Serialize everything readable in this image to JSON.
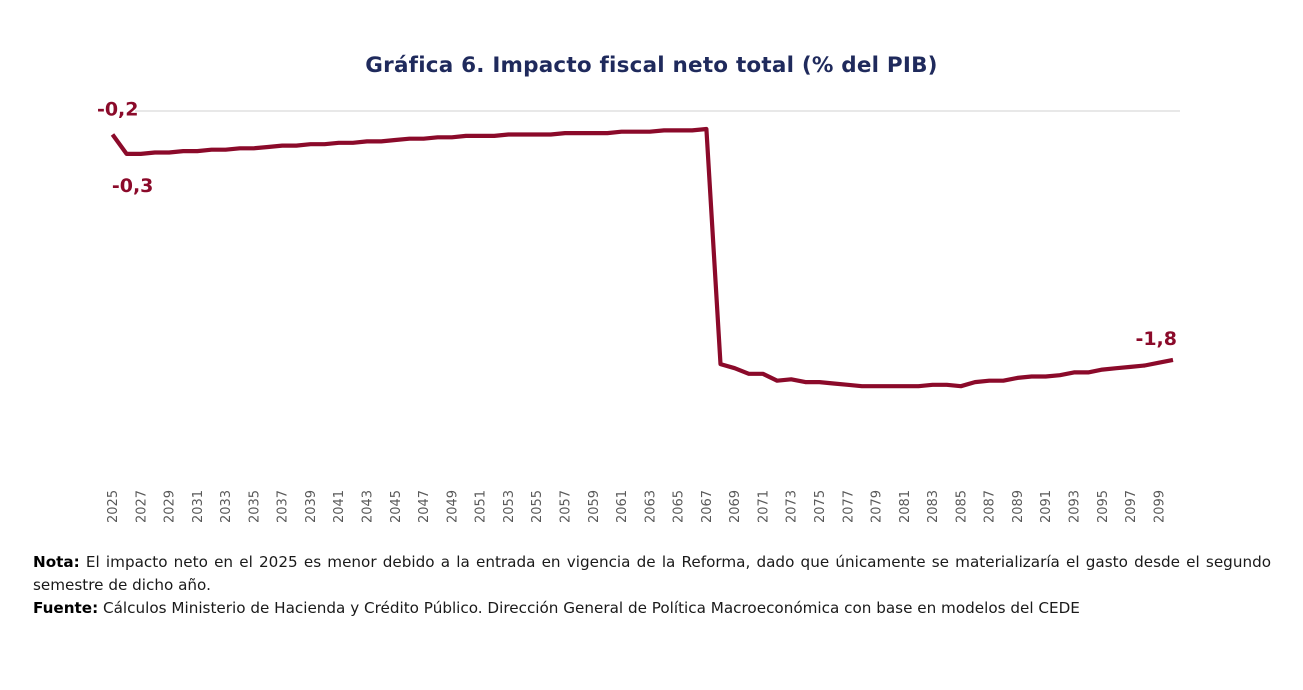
{
  "document": {
    "note_label": "Nota:",
    "note_text": " El impacto neto en el 2025 es menor debido a la entrada en vigencia de la Reforma, dado que únicamente se materializaría el gasto desde el segundo semestre de dicho año.",
    "source_label": "Fuente:",
    "source_text": " Cálculos Ministerio de Hacienda y Crédito Público. Dirección General de Política Macroeconómica con base en modelos del CEDE"
  },
  "chart_data": {
    "type": "line",
    "title": "Gráfica 6. Impacto fiscal neto total (% del PIB)",
    "xlabel": "",
    "ylabel": "",
    "ylim": [
      -2.3,
      0.0
    ],
    "grid": "single horizontal gridline at 0",
    "legend": "none",
    "line_color": "#8b0a2a",
    "title_color": "#1f2a5c",
    "x_tick_labels": [
      "2025",
      "2027",
      "2029",
      "2031",
      "2033",
      "2035",
      "2037",
      "2039",
      "2041",
      "2043",
      "2045",
      "2047",
      "2049",
      "2051",
      "2053",
      "2055",
      "2057",
      "2059",
      "2061",
      "2063",
      "2065",
      "2067",
      "2069",
      "2071",
      "2073",
      "2075",
      "2077",
      "2079",
      "2081",
      "2083",
      "2085",
      "2087",
      "2089",
      "2091",
      "2093",
      "2095",
      "2097",
      "2099"
    ],
    "series": [
      {
        "name": "Impacto fiscal neto total",
        "x": [
          2025,
          2026,
          2027,
          2028,
          2029,
          2030,
          2031,
          2032,
          2033,
          2034,
          2035,
          2036,
          2037,
          2038,
          2039,
          2040,
          2041,
          2042,
          2043,
          2044,
          2045,
          2046,
          2047,
          2048,
          2049,
          2050,
          2051,
          2052,
          2053,
          2054,
          2055,
          2056,
          2057,
          2058,
          2059,
          2060,
          2061,
          2062,
          2063,
          2064,
          2065,
          2066,
          2067,
          2068,
          2069,
          2070,
          2071,
          2072,
          2073,
          2074,
          2075,
          2076,
          2077,
          2078,
          2079,
          2080,
          2081,
          2082,
          2083,
          2084,
          2085,
          2086,
          2087,
          2088,
          2089,
          2090,
          2091,
          2092,
          2093,
          2094,
          2095,
          2096,
          2097,
          2098,
          2099,
          2100
        ],
        "values": [
          -0.17,
          -0.31,
          -0.31,
          -0.3,
          -0.3,
          -0.29,
          -0.29,
          -0.28,
          -0.28,
          -0.27,
          -0.27,
          -0.26,
          -0.25,
          -0.25,
          -0.24,
          -0.24,
          -0.23,
          -0.23,
          -0.22,
          -0.22,
          -0.21,
          -0.2,
          -0.2,
          -0.19,
          -0.19,
          -0.18,
          -0.18,
          -0.18,
          -0.17,
          -0.17,
          -0.17,
          -0.17,
          -0.16,
          -0.16,
          -0.16,
          -0.16,
          -0.15,
          -0.15,
          -0.15,
          -0.14,
          -0.14,
          -0.14,
          -0.13,
          -1.83,
          -1.86,
          -1.9,
          -1.9,
          -1.95,
          -1.94,
          -1.96,
          -1.96,
          -1.97,
          -1.98,
          -1.99,
          -1.99,
          -1.99,
          -1.99,
          -1.99,
          -1.98,
          -1.98,
          -1.99,
          -1.96,
          -1.95,
          -1.95,
          -1.93,
          -1.92,
          -1.92,
          -1.91,
          -1.89,
          -1.89,
          -1.87,
          -1.86,
          -1.85,
          -1.84,
          -1.82,
          -1.8
        ]
      }
    ],
    "data_labels": [
      {
        "x": 2025,
        "text": "-0,2",
        "position": "above-left"
      },
      {
        "x": 2026,
        "text": "-0,3",
        "position": "below"
      },
      {
        "x": 2100,
        "text": "-1,8",
        "position": "above-left"
      }
    ]
  }
}
